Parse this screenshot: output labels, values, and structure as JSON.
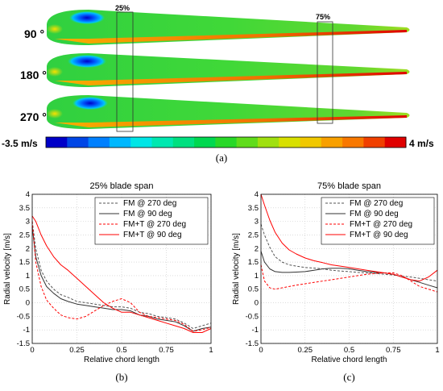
{
  "panel_a": {
    "blade_labels": [
      "90 °",
      "180 °",
      "270 °"
    ],
    "span_markers": [
      "25%",
      "75%"
    ],
    "colorbar_min_label": "-3.5 m/s",
    "colorbar_max_label": "4 m/s",
    "colorbar_colors": [
      "#0000c8",
      "#0046e6",
      "#0080ff",
      "#00b8ff",
      "#00e6e6",
      "#00e8b0",
      "#00e080",
      "#00d850",
      "#28d828",
      "#60dc1c",
      "#a0e010",
      "#d8e000",
      "#f0c800",
      "#f8a000",
      "#f87800",
      "#f04000",
      "#e00000"
    ],
    "caption": "(a)"
  },
  "chart_data": [
    {
      "type": "line",
      "title": "25% blade span",
      "xlabel": "Relative chord length",
      "ylabel": "Radial velocity [m/s]",
      "xlim": [
        0,
        1
      ],
      "ylim": [
        -1.5,
        4
      ],
      "xticks": [
        "0",
        "0.25",
        "0.5",
        "0.75",
        "1"
      ],
      "yticks": [
        "-1.5",
        "-1",
        "-0.5",
        "0",
        "0.5",
        "1",
        "1.5",
        "2",
        "2.5",
        "3",
        "3.5",
        "4"
      ],
      "grid": true,
      "legend": "top-right",
      "caption": "(b)",
      "series": [
        {
          "name": "FM @ 270 deg",
          "color": "#555555",
          "dash": "dashed",
          "x": [
            0,
            0.02,
            0.05,
            0.08,
            0.12,
            0.16,
            0.2,
            0.25,
            0.3,
            0.35,
            0.4,
            0.45,
            0.5,
            0.55,
            0.6,
            0.65,
            0.7,
            0.75,
            0.8,
            0.85,
            0.9,
            0.95,
            1.0
          ],
          "y": [
            3.0,
            2.0,
            1.2,
            0.8,
            0.5,
            0.3,
            0.2,
            0.05,
            0.0,
            -0.05,
            -0.1,
            -0.15,
            -0.15,
            -0.2,
            -0.35,
            -0.4,
            -0.5,
            -0.55,
            -0.6,
            -0.75,
            -0.95,
            -0.85,
            -0.75
          ]
        },
        {
          "name": "FM @ 90 deg",
          "color": "#333333",
          "dash": "solid",
          "x": [
            0,
            0.02,
            0.05,
            0.08,
            0.12,
            0.16,
            0.2,
            0.25,
            0.3,
            0.35,
            0.4,
            0.45,
            0.5,
            0.55,
            0.6,
            0.65,
            0.7,
            0.75,
            0.8,
            0.85,
            0.9,
            0.95,
            1.0
          ],
          "y": [
            2.8,
            1.7,
            1.0,
            0.6,
            0.35,
            0.15,
            0.05,
            -0.05,
            -0.1,
            -0.15,
            -0.2,
            -0.25,
            -0.25,
            -0.3,
            -0.45,
            -0.5,
            -0.6,
            -0.65,
            -0.7,
            -0.85,
            -1.05,
            -0.95,
            -0.9
          ]
        },
        {
          "name": "FM+T @ 270 deg",
          "color": "#ff0000",
          "dash": "dashed",
          "x": [
            0,
            0.02,
            0.05,
            0.08,
            0.12,
            0.16,
            0.2,
            0.25,
            0.3,
            0.35,
            0.4,
            0.45,
            0.5,
            0.55,
            0.6,
            0.65,
            0.7,
            0.75,
            0.8,
            0.85,
            0.9,
            0.95,
            1.0
          ],
          "y": [
            3.0,
            1.5,
            0.6,
            0.1,
            -0.2,
            -0.45,
            -0.55,
            -0.6,
            -0.5,
            -0.3,
            -0.1,
            0.05,
            0.15,
            0.0,
            -0.35,
            -0.5,
            -0.55,
            -0.6,
            -0.65,
            -0.8,
            -1.05,
            -1.0,
            -0.9
          ]
        },
        {
          "name": "FM+T @ 90 deg",
          "color": "#ff0000",
          "dash": "solid",
          "x": [
            0,
            0.02,
            0.05,
            0.08,
            0.12,
            0.16,
            0.2,
            0.25,
            0.3,
            0.35,
            0.4,
            0.45,
            0.5,
            0.55,
            0.6,
            0.65,
            0.7,
            0.75,
            0.8,
            0.85,
            0.9,
            0.95,
            1.0
          ],
          "y": [
            3.2,
            3.0,
            2.5,
            2.1,
            1.7,
            1.4,
            1.2,
            0.9,
            0.6,
            0.3,
            0.0,
            -0.2,
            -0.35,
            -0.35,
            -0.45,
            -0.55,
            -0.65,
            -0.75,
            -0.85,
            -0.95,
            -1.1,
            -1.1,
            -0.95
          ]
        }
      ]
    },
    {
      "type": "line",
      "title": "75% blade span",
      "xlabel": "Relative chord length",
      "ylabel": "Radial velocity [m/s]",
      "xlim": [
        0,
        1
      ],
      "ylim": [
        -1.5,
        4
      ],
      "xticks": [
        "0",
        "0.25",
        "0.5",
        "0.75",
        "1"
      ],
      "yticks": [
        "-1.5",
        "-1",
        "-0.5",
        "0",
        "0.5",
        "1",
        "1.5",
        "2",
        "2.5",
        "3",
        "3.5",
        "4"
      ],
      "grid": true,
      "legend": "top-right",
      "caption": "(c)",
      "series": [
        {
          "name": "FM @ 270 deg",
          "color": "#555555",
          "dash": "dashed",
          "x": [
            0,
            0.02,
            0.05,
            0.08,
            0.12,
            0.16,
            0.2,
            0.25,
            0.3,
            0.35,
            0.4,
            0.45,
            0.5,
            0.55,
            0.6,
            0.65,
            0.7,
            0.75,
            0.8,
            0.85,
            0.9,
            0.95,
            1.0
          ],
          "y": [
            2.9,
            2.5,
            2.05,
            1.7,
            1.5,
            1.4,
            1.35,
            1.3,
            1.28,
            1.25,
            1.2,
            1.17,
            1.15,
            1.12,
            1.1,
            1.08,
            1.05,
            1.02,
            0.98,
            0.95,
            0.9,
            0.85,
            0.8
          ]
        },
        {
          "name": "FM @ 90 deg",
          "color": "#333333",
          "dash": "solid",
          "x": [
            0,
            0.02,
            0.05,
            0.08,
            0.12,
            0.16,
            0.2,
            0.25,
            0.3,
            0.35,
            0.4,
            0.45,
            0.5,
            0.55,
            0.6,
            0.65,
            0.7,
            0.75,
            0.8,
            0.85,
            0.9,
            0.95,
            1.0
          ],
          "y": [
            1.9,
            1.5,
            1.25,
            1.15,
            1.12,
            1.12,
            1.13,
            1.15,
            1.2,
            1.25,
            1.27,
            1.27,
            1.25,
            1.2,
            1.15,
            1.12,
            1.1,
            1.05,
            0.95,
            0.85,
            0.75,
            0.65,
            0.55
          ]
        },
        {
          "name": "FM+T @ 270 deg",
          "color": "#ff0000",
          "dash": "dashed",
          "x": [
            0,
            0.02,
            0.05,
            0.08,
            0.12,
            0.16,
            0.2,
            0.25,
            0.3,
            0.35,
            0.4,
            0.45,
            0.5,
            0.55,
            0.6,
            0.65,
            0.7,
            0.75,
            0.8,
            0.85,
            0.9,
            0.95,
            1.0
          ],
          "y": [
            1.4,
            0.8,
            0.55,
            0.5,
            0.55,
            0.6,
            0.65,
            0.7,
            0.75,
            0.8,
            0.85,
            0.9,
            0.95,
            1.0,
            1.05,
            1.08,
            1.1,
            1.1,
            1.0,
            0.8,
            0.6,
            0.5,
            0.4
          ]
        },
        {
          "name": "FM+T @ 90 deg",
          "color": "#ff0000",
          "dash": "solid",
          "x": [
            0,
            0.02,
            0.05,
            0.08,
            0.12,
            0.16,
            0.2,
            0.25,
            0.3,
            0.35,
            0.4,
            0.45,
            0.5,
            0.55,
            0.6,
            0.65,
            0.7,
            0.75,
            0.8,
            0.85,
            0.9,
            0.95,
            1.0
          ],
          "y": [
            4.0,
            3.6,
            3.05,
            2.6,
            2.2,
            1.95,
            1.8,
            1.65,
            1.55,
            1.48,
            1.4,
            1.35,
            1.3,
            1.25,
            1.2,
            1.15,
            1.1,
            1.05,
            0.95,
            0.85,
            0.8,
            0.95,
            1.2
          ]
        }
      ]
    }
  ]
}
